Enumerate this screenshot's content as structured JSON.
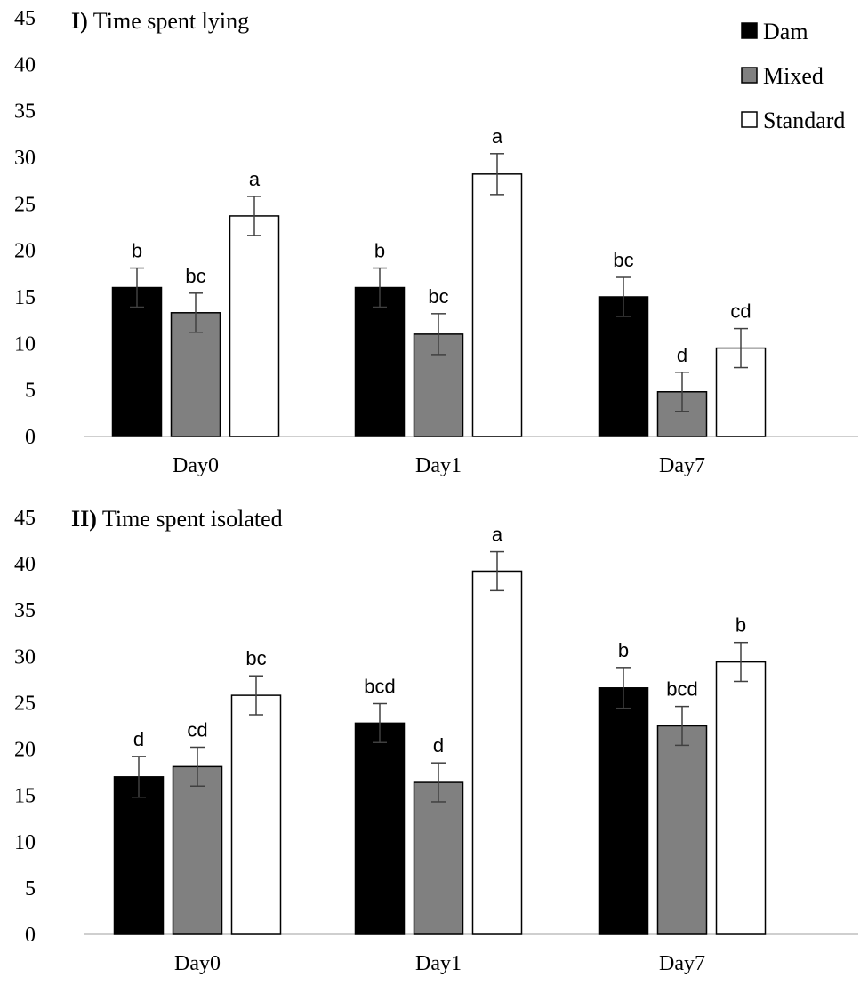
{
  "chart_data": [
    {
      "type": "bar",
      "panel_label": "I)",
      "title": "Time spent lying",
      "categories": [
        "Day0",
        "Day1",
        "Day7"
      ],
      "ylim": [
        0,
        45
      ],
      "yticks": [
        0,
        5,
        10,
        15,
        20,
        25,
        30,
        35,
        40,
        45
      ],
      "series": [
        {
          "name": "Dam",
          "color": "#000000",
          "values": [
            16.0,
            16.0,
            15.0
          ],
          "errors": [
            2.1,
            2.1,
            2.1
          ],
          "letters": [
            "b",
            "b",
            "bc"
          ]
        },
        {
          "name": "Mixed",
          "color": "#808080",
          "values": [
            13.3,
            11.0,
            4.8
          ],
          "errors": [
            2.1,
            2.2,
            2.1
          ],
          "letters": [
            "bc",
            "bc",
            "d"
          ]
        },
        {
          "name": "Standard",
          "color": "#ffffff",
          "values": [
            23.7,
            28.2,
            9.5
          ],
          "errors": [
            2.1,
            2.2,
            2.1
          ],
          "letters": [
            "a",
            "a",
            "cd"
          ]
        }
      ]
    },
    {
      "type": "bar",
      "panel_label": "II)",
      "title": "Time spent isolated",
      "categories": [
        "Day0",
        "Day1",
        "Day7"
      ],
      "ylim": [
        0,
        45
      ],
      "yticks": [
        0,
        5,
        10,
        15,
        20,
        25,
        30,
        35,
        40,
        45
      ],
      "series": [
        {
          "name": "Dam",
          "color": "#000000",
          "values": [
            17.0,
            22.8,
            26.6
          ],
          "errors": [
            2.2,
            2.1,
            2.2
          ],
          "letters": [
            "d",
            "bcd",
            "b"
          ]
        },
        {
          "name": "Mixed",
          "color": "#808080",
          "values": [
            18.1,
            16.4,
            22.5
          ],
          "errors": [
            2.1,
            2.1,
            2.1
          ],
          "letters": [
            "cd",
            "d",
            "bcd"
          ]
        },
        {
          "name": "Standard",
          "color": "#ffffff",
          "values": [
            25.8,
            39.2,
            29.4
          ],
          "errors": [
            2.1,
            2.1,
            2.1
          ],
          "letters": [
            "bc",
            "a",
            "b"
          ]
        }
      ]
    }
  ],
  "legend": [
    {
      "label": "Dam",
      "color": "#000000"
    },
    {
      "label": "Mixed",
      "color": "#808080"
    },
    {
      "label": "Standard",
      "color": "#ffffff"
    }
  ]
}
